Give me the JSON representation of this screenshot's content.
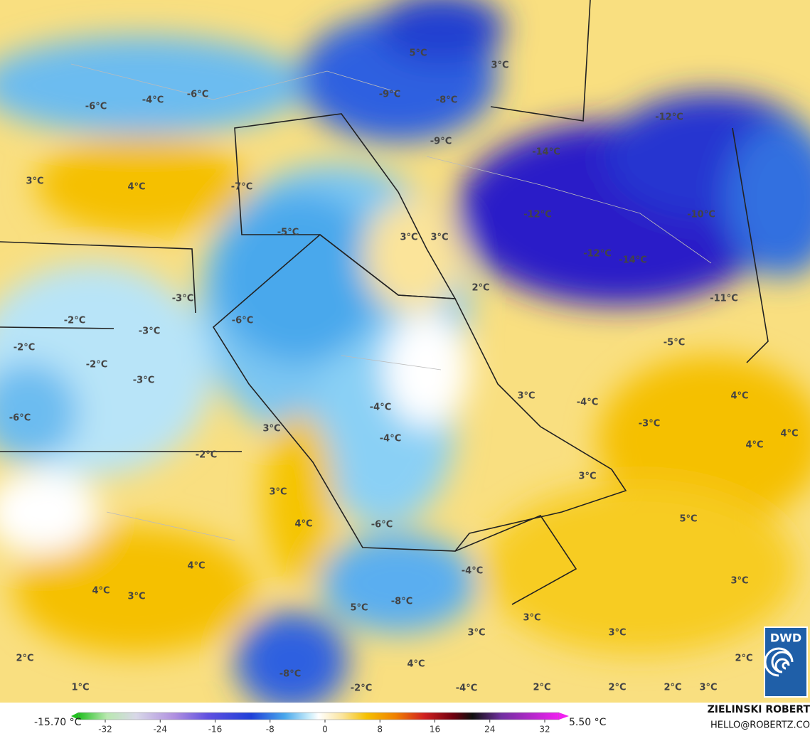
{
  "map": {
    "labels": [
      "5°C",
      "3°C",
      "-6°C",
      "-4°C",
      "-6°C",
      "-9°C",
      "-8°C",
      "-12°C",
      "-9°C",
      "-14°C",
      "3°C",
      "4°C",
      "-7°C",
      "-5°C",
      "3°C",
      "3°C",
      "-12°C",
      "-10°C",
      "-12°C",
      "-14°C",
      "2°C",
      "-3°C",
      "-11°C",
      "-2°C",
      "-6°C",
      "-3°C",
      "-2°C",
      "-5°C",
      "-2°C",
      "-3°C",
      "3°C",
      "-4°C",
      "4°C",
      "-4°C",
      "-6°C",
      "3°C",
      "-3°C",
      "4°C",
      "-4°C",
      "4°C",
      "-2°C",
      "3°C",
      "3°C",
      "5°C",
      "4°C",
      "-6°C",
      "4°C",
      "-4°C",
      "4°C",
      "3°C",
      "-8°C",
      "3°C",
      "5°C",
      "3°C",
      "3°C",
      "3°C",
      "2°C",
      "2°C",
      "4°C",
      "-8°C",
      "1°C",
      "-2°C",
      "-4°C",
      "2°C",
      "2°C",
      "2°C",
      "3°C"
    ]
  },
  "colorbar": {
    "min_label": "-15.70 °C",
    "max_label": "5.50 °C",
    "ticks": [
      -32,
      -24,
      -16,
      -8,
      0,
      8,
      16,
      24,
      32
    ]
  },
  "logo": "DWD",
  "credit": {
    "name": "ZIELINSKI ROBERT",
    "contact": "HELLO@ROBERTZ.CO"
  }
}
